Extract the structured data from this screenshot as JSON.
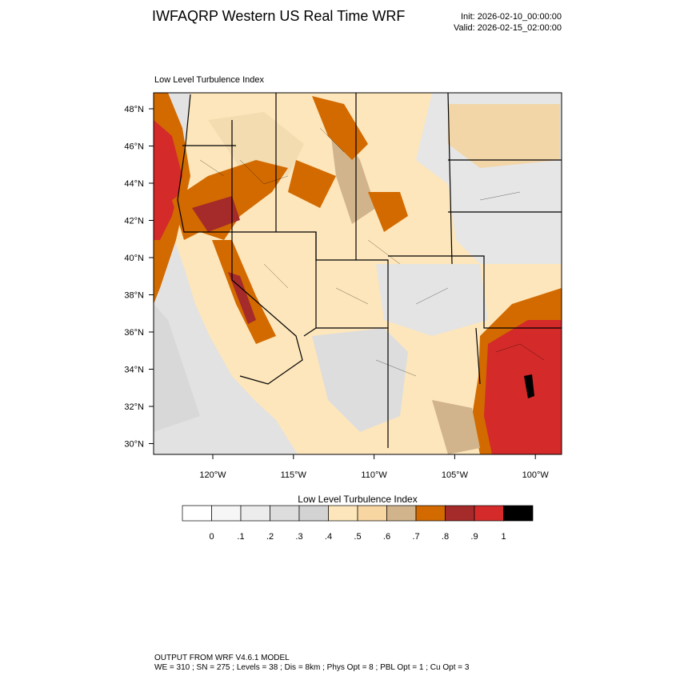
{
  "header": {
    "title": "IWFAQRP Western US Real Time WRF",
    "init": "Init: 2026-02-10_00:00:00",
    "valid": "Valid: 2026-02-15_02:00:00"
  },
  "map": {
    "subtitle": "Low Level Turbulence Index",
    "lat_labels": [
      "48°N",
      "46°N",
      "44°N",
      "42°N",
      "40°N",
      "38°N",
      "36°N",
      "34°N",
      "32°N",
      "30°N"
    ],
    "lon_labels": [
      "120°W",
      "115°W",
      "110°W",
      "105°W",
      "100°W"
    ]
  },
  "colorbar": {
    "title": "Low Level Turbulence Index",
    "colors": [
      "#ffffff",
      "#f6f6f6",
      "#ececec",
      "#dddddd",
      "#d3d3d3",
      "#fde6bb",
      "#f7d6a2",
      "#d2b48c",
      "#d26a00",
      "#a52a2a",
      "#d42a2a",
      "#000000"
    ],
    "labels": [
      "0",
      ".1",
      ".2",
      ".3",
      ".4",
      ".5",
      ".6",
      ".7",
      ".8",
      ".9",
      "1"
    ]
  },
  "footer": {
    "line1": "OUTPUT FROM WRF V4.6.1 MODEL",
    "line2": "WE = 310 ; SN = 275 ; Levels = 38 ; Dis = 8km ; Phys Opt = 8 ; PBL Opt = 1 ; Cu Opt = 3"
  }
}
